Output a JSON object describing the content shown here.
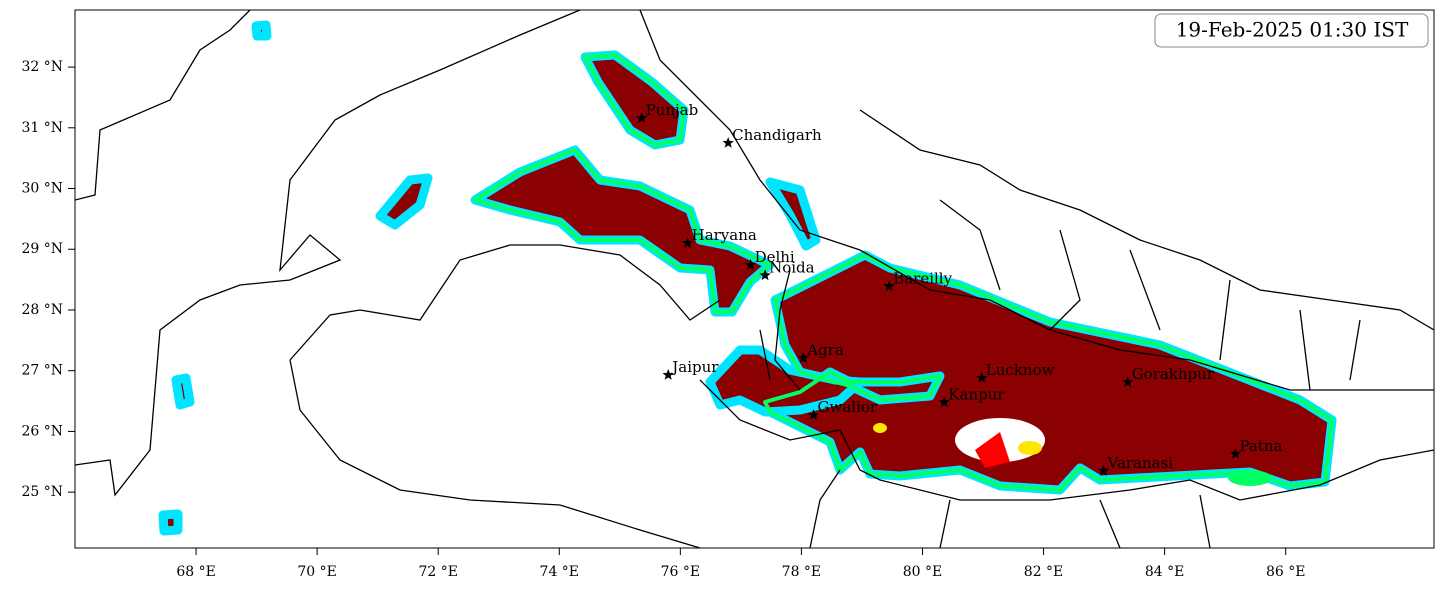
{
  "map": {
    "timestamp": "19-Feb-2025 01:30 IST",
    "xlim": [
      66,
      88.45
    ],
    "ylim": [
      24.08,
      32.94
    ],
    "xticks": [
      {
        "value": 68,
        "label": "68 °E"
      },
      {
        "value": 70,
        "label": "70 °E"
      },
      {
        "value": 72,
        "label": "72 °E"
      },
      {
        "value": 74,
        "label": "74 °E"
      },
      {
        "value": 76,
        "label": "76 °E"
      },
      {
        "value": 78,
        "label": "78 °E"
      },
      {
        "value": 80,
        "label": "80 °E"
      },
      {
        "value": 82,
        "label": "82 °E"
      },
      {
        "value": 84,
        "label": "84 °E"
      },
      {
        "value": 86,
        "label": "86 °E"
      }
    ],
    "yticks": [
      {
        "value": 25,
        "label": "25 °N"
      },
      {
        "value": 26,
        "label": "26 °N"
      },
      {
        "value": 27,
        "label": "27 °N"
      },
      {
        "value": 28,
        "label": "28 °N"
      },
      {
        "value": 29,
        "label": "29 °N"
      },
      {
        "value": 30,
        "label": "30 °N"
      },
      {
        "value": 31,
        "label": "31 °N"
      },
      {
        "value": 32,
        "label": "32 °N"
      }
    ],
    "cities": [
      {
        "name": "Punjab",
        "lon": 75.36,
        "lat": 31.16
      },
      {
        "name": "Chandigarh",
        "lon": 76.79,
        "lat": 30.75
      },
      {
        "name": "Haryana",
        "lon": 76.12,
        "lat": 29.1
      },
      {
        "name": "Delhi",
        "lon": 77.16,
        "lat": 28.74
      },
      {
        "name": "Noida",
        "lon": 77.4,
        "lat": 28.57
      },
      {
        "name": "Bareilly",
        "lon": 79.45,
        "lat": 28.39
      },
      {
        "name": "Agra",
        "lon": 78.03,
        "lat": 27.21
      },
      {
        "name": "Jaipur",
        "lon": 75.8,
        "lat": 26.93
      },
      {
        "name": "Lucknow",
        "lon": 80.98,
        "lat": 26.88
      },
      {
        "name": "Gorakhpur",
        "lon": 83.39,
        "lat": 26.81
      },
      {
        "name": "Kanpur",
        "lon": 80.36,
        "lat": 26.48
      },
      {
        "name": "Gwalior",
        "lon": 78.2,
        "lat": 26.27
      },
      {
        "name": "Varanasi",
        "lon": 82.99,
        "lat": 25.35
      },
      {
        "name": "Patna",
        "lon": 85.17,
        "lat": 25.63
      }
    ]
  }
}
